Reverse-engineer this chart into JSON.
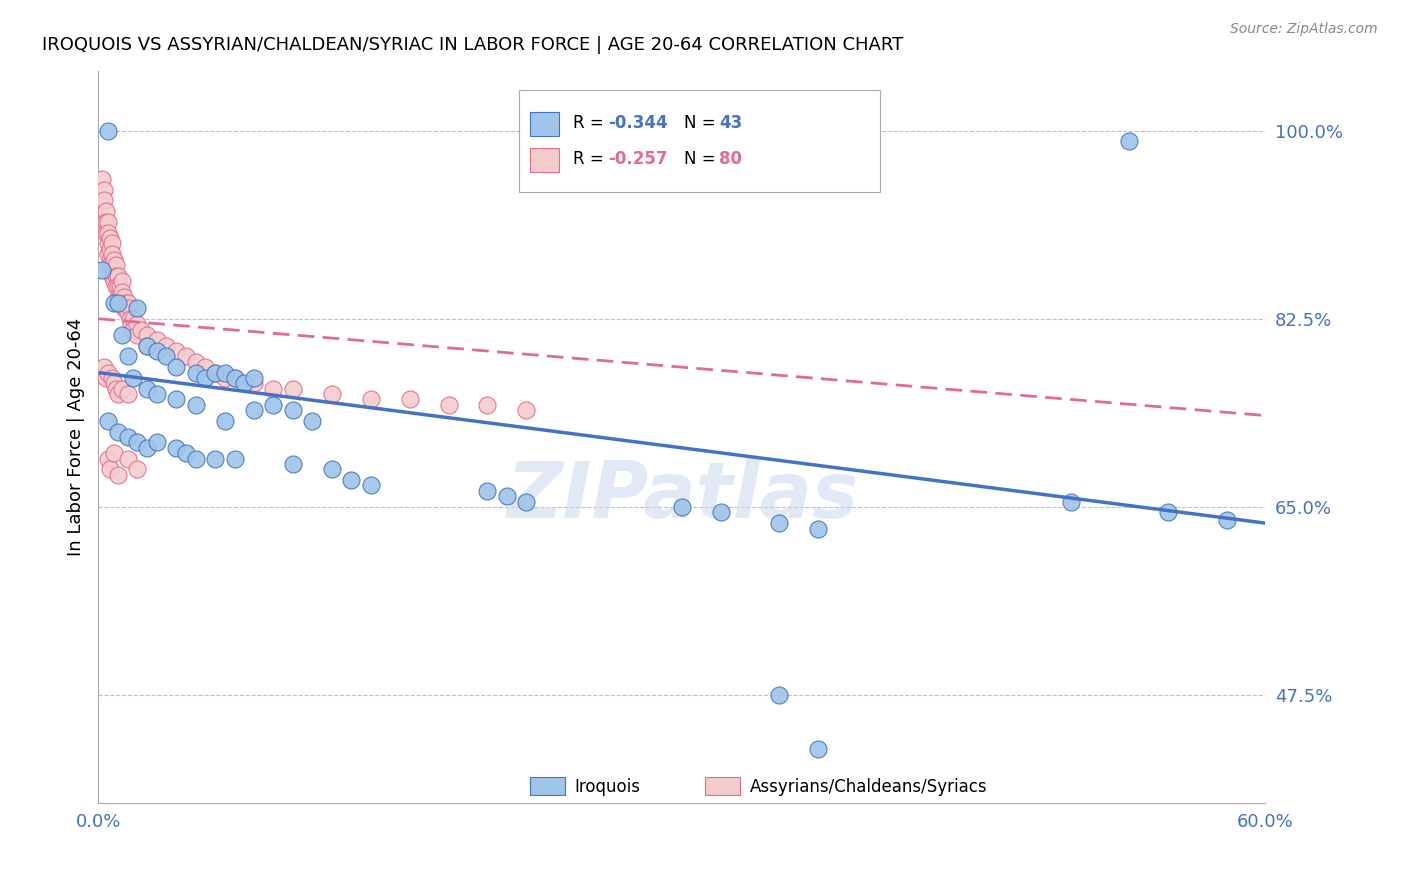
{
  "title": "IROQUOIS VS ASSYRIAN/CHALDEAN/SYRIAC IN LABOR FORCE | AGE 20-64 CORRELATION CHART",
  "source": "Source: ZipAtlas.com",
  "ylabel": "In Labor Force | Age 20-64",
  "y_ticks_pct": [
    47.5,
    65.0,
    82.5,
    100.0
  ],
  "x_min": 0.0,
  "x_max": 0.6,
  "y_min": 0.375,
  "y_max": 1.055,
  "watermark": "ZIPatlas",
  "blue_scatter": [
    [
      0.005,
      1.0
    ],
    [
      0.53,
      0.99
    ],
    [
      0.002,
      0.87
    ],
    [
      0.008,
      0.84
    ],
    [
      0.01,
      0.84
    ],
    [
      0.012,
      0.81
    ],
    [
      0.015,
      0.79
    ],
    [
      0.018,
      0.77
    ],
    [
      0.02,
      0.835
    ],
    [
      0.025,
      0.8
    ],
    [
      0.03,
      0.795
    ],
    [
      0.035,
      0.79
    ],
    [
      0.04,
      0.78
    ],
    [
      0.05,
      0.775
    ],
    [
      0.055,
      0.77
    ],
    [
      0.06,
      0.775
    ],
    [
      0.065,
      0.775
    ],
    [
      0.07,
      0.77
    ],
    [
      0.075,
      0.765
    ],
    [
      0.08,
      0.77
    ],
    [
      0.025,
      0.76
    ],
    [
      0.03,
      0.755
    ],
    [
      0.04,
      0.75
    ],
    [
      0.05,
      0.745
    ],
    [
      0.065,
      0.73
    ],
    [
      0.08,
      0.74
    ],
    [
      0.09,
      0.745
    ],
    [
      0.1,
      0.74
    ],
    [
      0.11,
      0.73
    ],
    [
      0.005,
      0.73
    ],
    [
      0.01,
      0.72
    ],
    [
      0.015,
      0.715
    ],
    [
      0.02,
      0.71
    ],
    [
      0.025,
      0.705
    ],
    [
      0.03,
      0.71
    ],
    [
      0.04,
      0.705
    ],
    [
      0.045,
      0.7
    ],
    [
      0.05,
      0.695
    ],
    [
      0.06,
      0.695
    ],
    [
      0.07,
      0.695
    ],
    [
      0.1,
      0.69
    ],
    [
      0.12,
      0.685
    ],
    [
      0.13,
      0.675
    ],
    [
      0.14,
      0.67
    ],
    [
      0.2,
      0.665
    ],
    [
      0.21,
      0.66
    ],
    [
      0.22,
      0.655
    ],
    [
      0.3,
      0.65
    ],
    [
      0.32,
      0.645
    ],
    [
      0.35,
      0.635
    ],
    [
      0.37,
      0.63
    ],
    [
      0.5,
      0.655
    ],
    [
      0.55,
      0.645
    ],
    [
      0.58,
      0.638
    ],
    [
      0.35,
      0.475
    ],
    [
      0.37,
      0.425
    ]
  ],
  "pink_scatter": [
    [
      0.002,
      0.955
    ],
    [
      0.003,
      0.945
    ],
    [
      0.003,
      0.935
    ],
    [
      0.004,
      0.925
    ],
    [
      0.004,
      0.915
    ],
    [
      0.004,
      0.905
    ],
    [
      0.005,
      0.915
    ],
    [
      0.005,
      0.905
    ],
    [
      0.005,
      0.895
    ],
    [
      0.005,
      0.885
    ],
    [
      0.006,
      0.9
    ],
    [
      0.006,
      0.89
    ],
    [
      0.006,
      0.88
    ],
    [
      0.006,
      0.875
    ],
    [
      0.007,
      0.895
    ],
    [
      0.007,
      0.885
    ],
    [
      0.007,
      0.875
    ],
    [
      0.007,
      0.865
    ],
    [
      0.008,
      0.88
    ],
    [
      0.008,
      0.87
    ],
    [
      0.008,
      0.86
    ],
    [
      0.009,
      0.875
    ],
    [
      0.009,
      0.865
    ],
    [
      0.009,
      0.855
    ],
    [
      0.01,
      0.865
    ],
    [
      0.01,
      0.855
    ],
    [
      0.01,
      0.845
    ],
    [
      0.011,
      0.855
    ],
    [
      0.011,
      0.845
    ],
    [
      0.012,
      0.86
    ],
    [
      0.012,
      0.85
    ],
    [
      0.012,
      0.84
    ],
    [
      0.013,
      0.845
    ],
    [
      0.013,
      0.835
    ],
    [
      0.014,
      0.84
    ],
    [
      0.014,
      0.835
    ],
    [
      0.015,
      0.84
    ],
    [
      0.015,
      0.83
    ],
    [
      0.016,
      0.835
    ],
    [
      0.016,
      0.825
    ],
    [
      0.017,
      0.82
    ],
    [
      0.018,
      0.825
    ],
    [
      0.018,
      0.815
    ],
    [
      0.02,
      0.82
    ],
    [
      0.02,
      0.81
    ],
    [
      0.022,
      0.815
    ],
    [
      0.025,
      0.81
    ],
    [
      0.025,
      0.8
    ],
    [
      0.03,
      0.805
    ],
    [
      0.035,
      0.8
    ],
    [
      0.04,
      0.795
    ],
    [
      0.045,
      0.79
    ],
    [
      0.05,
      0.785
    ],
    [
      0.055,
      0.78
    ],
    [
      0.06,
      0.775
    ],
    [
      0.065,
      0.77
    ],
    [
      0.07,
      0.77
    ],
    [
      0.08,
      0.765
    ],
    [
      0.09,
      0.76
    ],
    [
      0.1,
      0.76
    ],
    [
      0.12,
      0.755
    ],
    [
      0.14,
      0.75
    ],
    [
      0.16,
      0.75
    ],
    [
      0.18,
      0.745
    ],
    [
      0.2,
      0.745
    ],
    [
      0.22,
      0.74
    ],
    [
      0.003,
      0.78
    ],
    [
      0.004,
      0.77
    ],
    [
      0.005,
      0.775
    ],
    [
      0.007,
      0.77
    ],
    [
      0.008,
      0.765
    ],
    [
      0.009,
      0.76
    ],
    [
      0.01,
      0.755
    ],
    [
      0.012,
      0.76
    ],
    [
      0.015,
      0.755
    ],
    [
      0.005,
      0.695
    ],
    [
      0.006,
      0.685
    ],
    [
      0.008,
      0.7
    ],
    [
      0.01,
      0.68
    ],
    [
      0.015,
      0.695
    ],
    [
      0.02,
      0.685
    ]
  ],
  "blue_line": [
    [
      0.0,
      0.775
    ],
    [
      0.6,
      0.635
    ]
  ],
  "pink_line": [
    [
      0.0,
      0.825
    ],
    [
      0.6,
      0.735
    ]
  ],
  "blue_color": "#4472C4",
  "pink_color": "#FF6B9D",
  "blue_scatter_color": "#9FC5E8",
  "pink_scatter_color": "#F4CCCC",
  "pink_edge_color": "#E06C8E",
  "grid_color": "#C0C0C0",
  "axis_color": "#4472C4",
  "background_color": "#ffffff"
}
